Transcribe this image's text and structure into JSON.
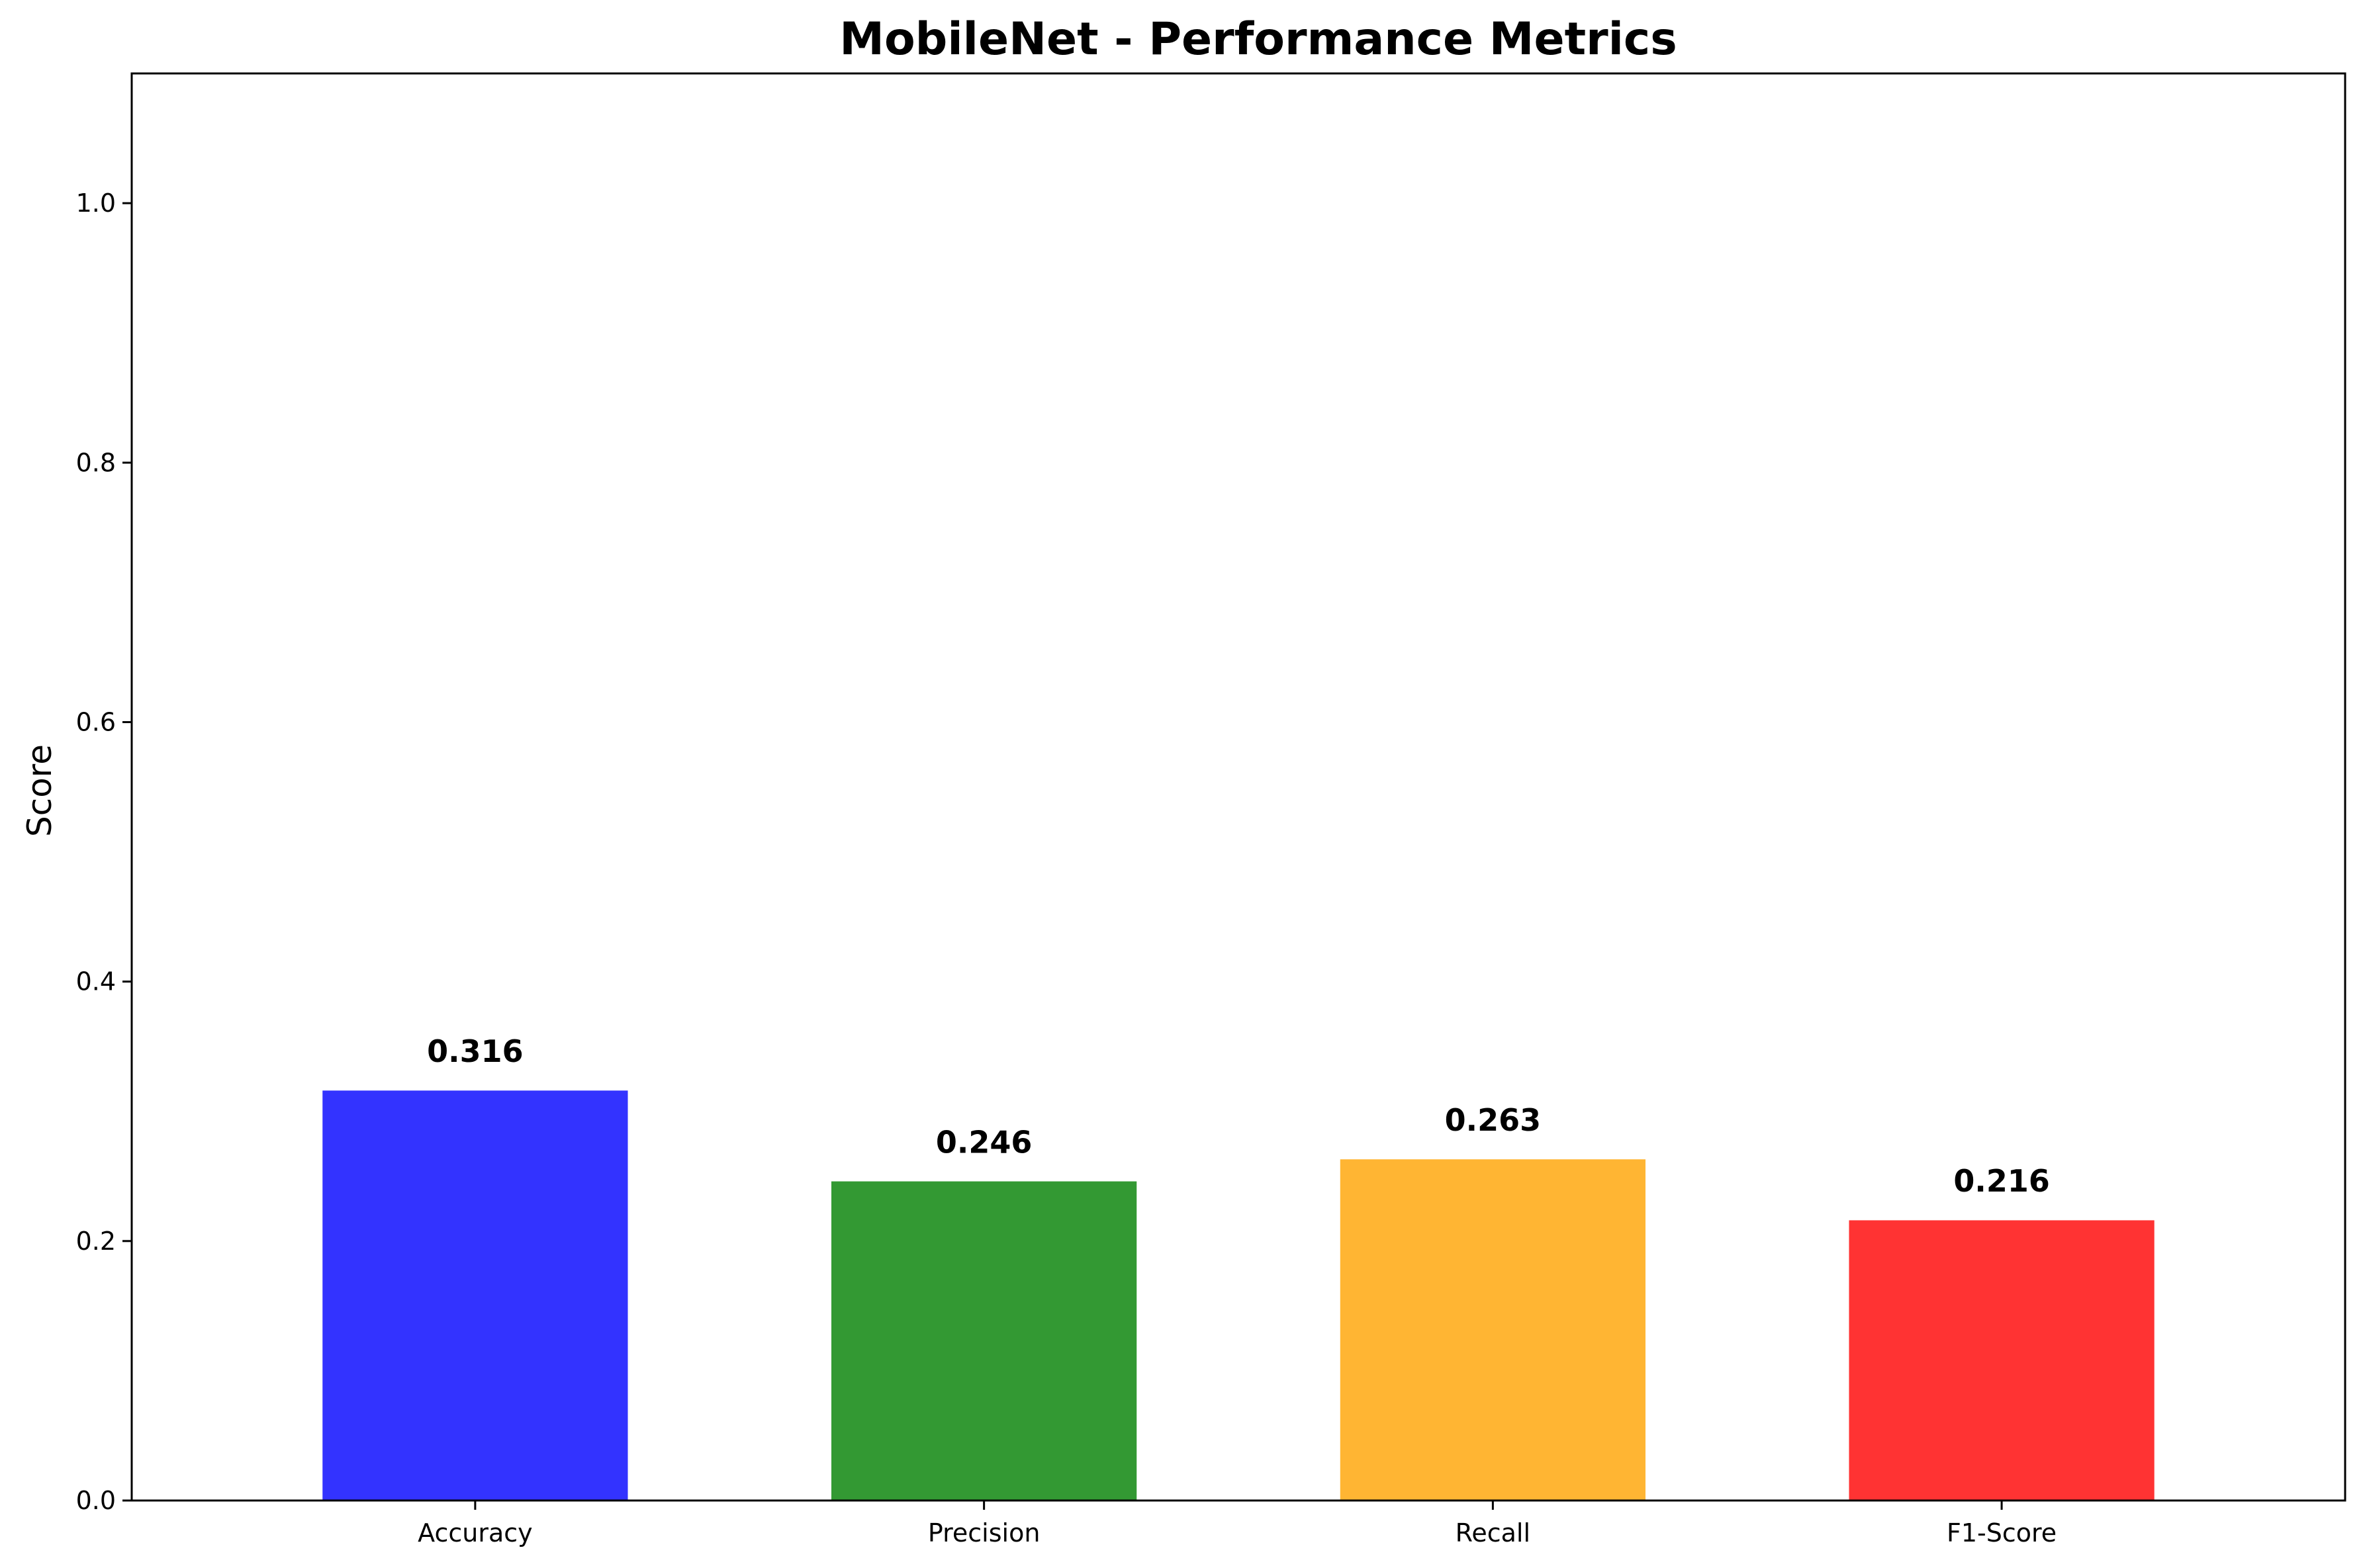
{
  "chart_data": {
    "type": "bar",
    "title": "MobileNet - Performance Metrics",
    "xlabel": "",
    "ylabel": "Score",
    "categories": [
      "Accuracy",
      "Precision",
      "Recall",
      "F1-Score"
    ],
    "values": [
      0.316,
      0.246,
      0.263,
      0.216
    ],
    "value_labels": [
      "0.316",
      "0.246",
      "0.263",
      "0.216"
    ],
    "colors": [
      "#3333ff",
      "#339933",
      "#ffb533",
      "#ff3333"
    ],
    "ylim": [
      0,
      1.1
    ],
    "yticks": [
      0.0,
      0.2,
      0.4,
      0.6,
      0.8,
      1.0
    ],
    "ytick_labels": [
      "0.0",
      "0.2",
      "0.4",
      "0.6",
      "0.8",
      "1.0"
    ],
    "grid": false,
    "legend": "none"
  }
}
